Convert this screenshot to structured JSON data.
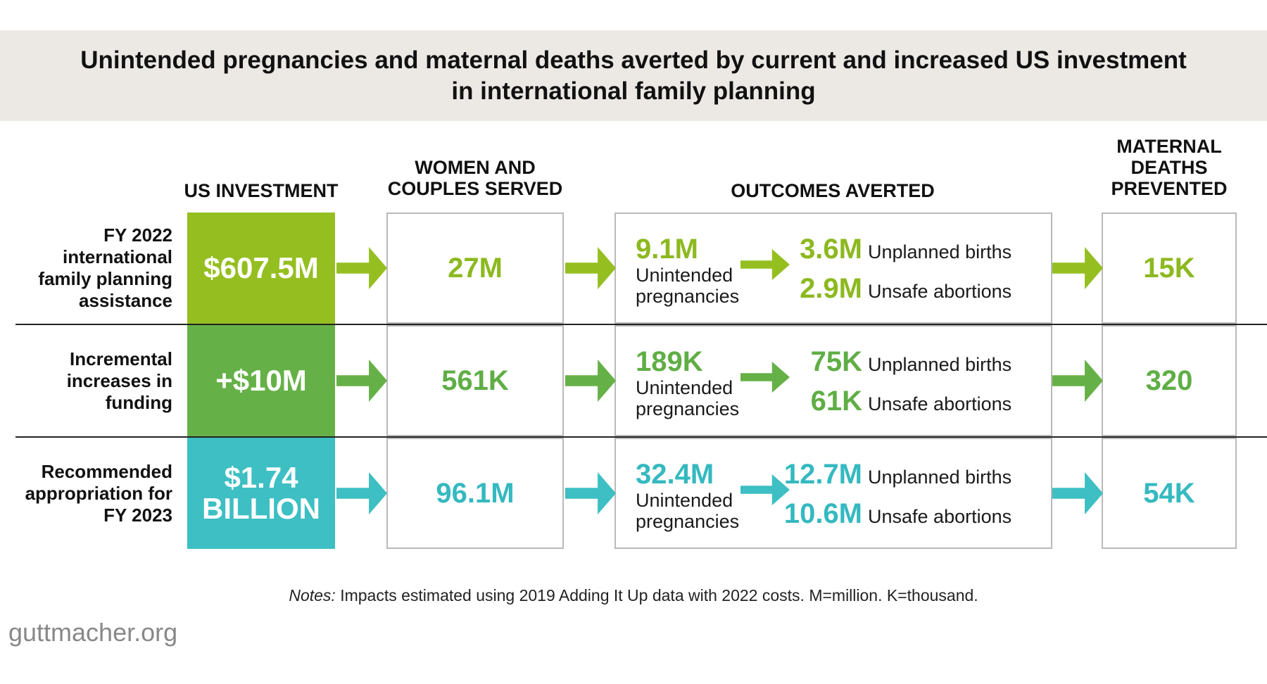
{
  "title": {
    "line1": "Unintended pregnancies and maternal deaths averted by current and increased US investment",
    "line2": "in international family planning"
  },
  "columns": {
    "investment": "US INVESTMENT",
    "served": [
      "WOMEN AND",
      "COUPLES SERVED"
    ],
    "outcomes": "OUTCOMES AVERTED",
    "deaths": [
      "MATERNAL",
      "DEATHS",
      "PREVENTED"
    ]
  },
  "colors": {
    "lime": "#95bf21",
    "green": "#66b147",
    "teal": "#3dbfc3",
    "lime_text": "#8cb91f",
    "green_text": "#5fae45",
    "teal_text": "#35b9c0"
  },
  "rows": [
    {
      "label": [
        "FY 2022",
        "international",
        "family planning",
        "assistance"
      ],
      "investment": [
        "$607.5M"
      ],
      "served": "27M",
      "unintended_value": "9.1M",
      "unintended_label": [
        "Unintended",
        "pregnancies"
      ],
      "births_value": "3.6M",
      "births_label": "Unplanned births",
      "abortions_value": "2.9M",
      "abortions_label": "Unsafe abortions",
      "deaths": "15K"
    },
    {
      "label": [
        "Incremental",
        "increases in",
        "funding"
      ],
      "investment": [
        "+$10M"
      ],
      "served": "561K",
      "unintended_value": "189K",
      "unintended_label": [
        "Unintended",
        "pregnancies"
      ],
      "births_value": "75K",
      "births_label": "Unplanned births",
      "abortions_value": "61K",
      "abortions_label": "Unsafe abortions",
      "deaths": "320"
    },
    {
      "label": [
        "Recommended",
        "appropriation for",
        "FY 2023"
      ],
      "investment": [
        "$1.74",
        "BILLION"
      ],
      "served": "96.1M",
      "unintended_value": "32.4M",
      "unintended_label": [
        "Unintended",
        "pregnancies"
      ],
      "births_value": "12.7M",
      "births_label": "Unplanned births",
      "abortions_value": "10.6M",
      "abortions_label": "Unsafe abortions",
      "deaths": "54K"
    }
  ],
  "notes": {
    "prefix": "Notes:",
    "text": " Impacts estimated using 2019 Adding It Up data with 2022 costs. M=million. K=thousand."
  },
  "footer": "guttmacher.org"
}
